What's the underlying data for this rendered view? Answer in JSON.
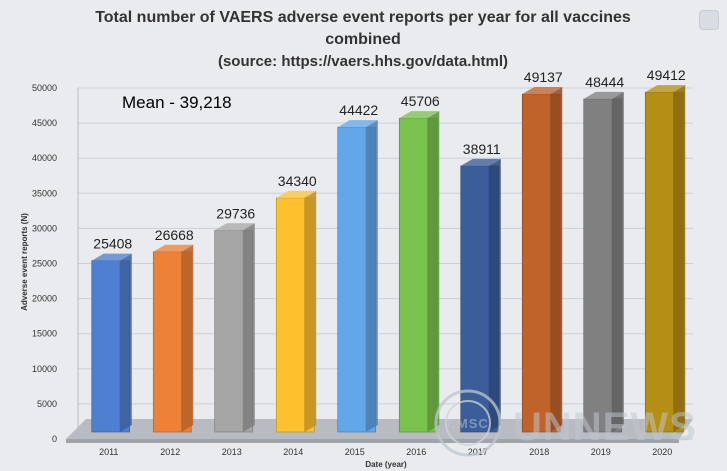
{
  "chart_data": {
    "type": "bar",
    "title_lines": [
      "Total number of VAERS adverse event reports per year for all vaccines",
      "combined",
      "(source: https://vaers.hhs.gov/data.html)"
    ],
    "xlabel": "Date (year)",
    "ylabel": "Adverse event reports (N)",
    "categories": [
      "2011",
      "2012",
      "2013",
      "2014",
      "2015",
      "2016",
      "2017",
      "2018",
      "2019",
      "2020"
    ],
    "values": [
      25408,
      26668,
      29736,
      34340,
      44422,
      45706,
      38911,
      49137,
      48444,
      49412
    ],
    "colors": [
      "#4f7fd0",
      "#ed8137",
      "#a6a6a6",
      "#fdc12e",
      "#62a7ea",
      "#78c24d",
      "#3b5e9a",
      "#c0632a",
      "#808080",
      "#b58e14"
    ],
    "ylim": [
      0,
      50000
    ],
    "yticks": [
      0,
      5000,
      10000,
      15000,
      20000,
      25000,
      30000,
      35000,
      40000,
      45000,
      50000
    ],
    "annotation": "Mean - 39,218",
    "grid": true,
    "legend": "none"
  },
  "watermark": {
    "text": "UNNEWS",
    "badge_text": "EMSC"
  },
  "icons": {
    "corner": "lens-icon"
  }
}
